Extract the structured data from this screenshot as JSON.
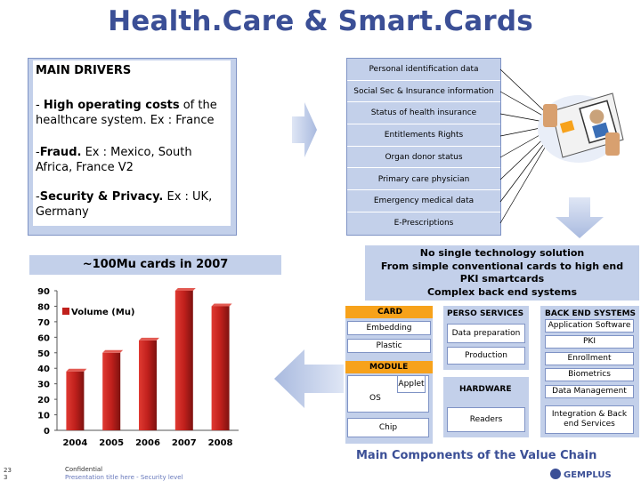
{
  "title": "Health.Care & Smart.Cards",
  "drivers": {
    "heading": "MAIN DRIVERS",
    "items": [
      {
        "prefix": "- ",
        "bold": "High operating costs",
        "rest": " of the healthcare system. Ex : France"
      },
      {
        "prefix": "-",
        "bold": "Fraud.",
        "rest": " Ex : Mexico, South Africa, France V2"
      },
      {
        "prefix": "-",
        "bold": "Security & Privacy.",
        "rest": " Ex : UK, Germany"
      }
    ]
  },
  "card_info": [
    "Personal identification data",
    "Social Sec & Insurance information",
    "Status of health insurance",
    "Entitlements Rights",
    "Organ donor status",
    "Primary care physician",
    "Emergency medical data",
    "E-Prescriptions"
  ],
  "cards_banner": "~100Mu cards in 2007",
  "technology": {
    "lines": [
      "No single technology solution",
      "From simple conventional cards to high end",
      "PKI smartcards",
      "Complex back end systems"
    ]
  },
  "value_chain": {
    "card": {
      "label": "CARD",
      "items": [
        "Embedding",
        "Plastic"
      ]
    },
    "module": {
      "label": "MODULE",
      "items": [
        "OS",
        "Applet",
        "Chip"
      ]
    },
    "perso": {
      "label": "PERSO SERVICES",
      "items": [
        "Data preparation",
        "Production"
      ]
    },
    "hardware": {
      "label": "HARDWARE",
      "items": [
        "Readers"
      ]
    },
    "backend": {
      "label": "BACK END SYSTEMS",
      "items": [
        "Application Software",
        "PKI",
        "Enrollment",
        "Biometrics",
        "Data Management",
        "Integration & Back end Services"
      ]
    },
    "caption": "Main Components of the Value Chain"
  },
  "footer": {
    "page_number": "23",
    "page_number_line2": "3",
    "confidential": "Confidential",
    "subtitle": "Presentation title here  -  Security level"
  },
  "logo_text": "GEMPLUS",
  "colors": {
    "title": "#3b4f96",
    "panel": "#c3d0ea",
    "bar": "#c0201c",
    "orange": "#f7a21b"
  },
  "chart_data": {
    "type": "bar",
    "categories": [
      "2004",
      "2005",
      "2006",
      "2007",
      "2008"
    ],
    "series": [
      {
        "name": "Volume (Mu)",
        "values": [
          38,
          50,
          58,
          90,
          80
        ]
      }
    ],
    "ylim": [
      0,
      90
    ],
    "yticks": [
      0,
      10,
      20,
      30,
      40,
      50,
      60,
      70,
      80,
      90
    ],
    "legend": "top-left"
  }
}
